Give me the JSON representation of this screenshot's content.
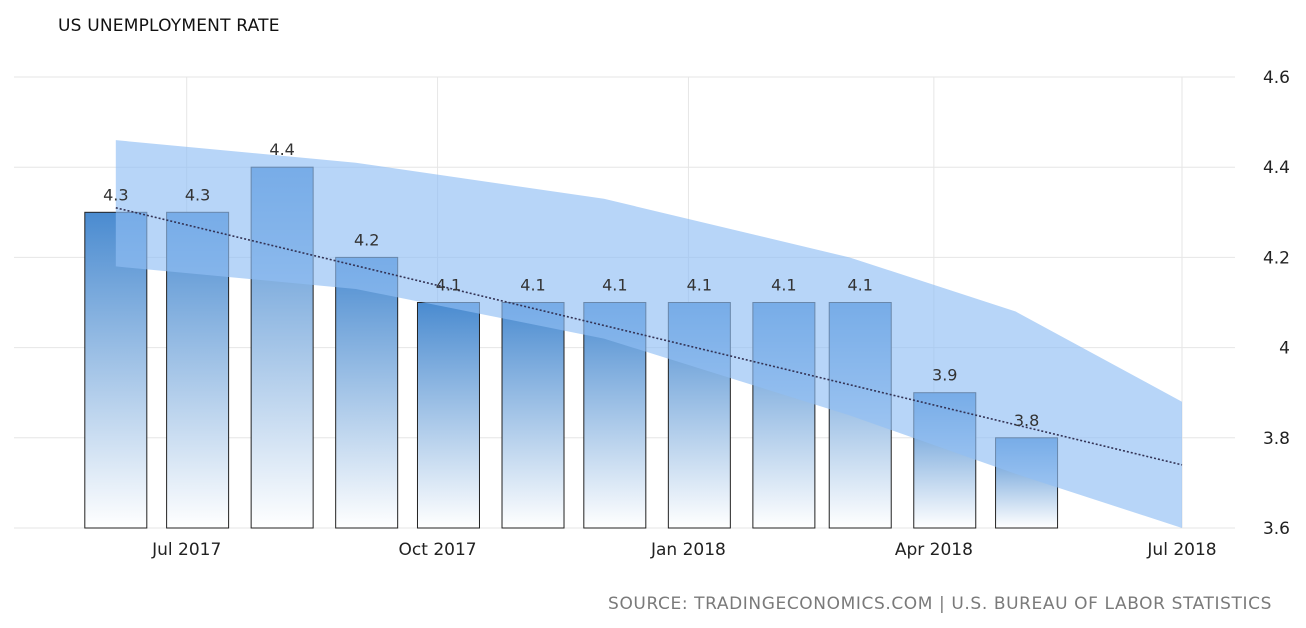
{
  "title": "US UNEMPLOYMENT RATE",
  "source": "SOURCE: TRADINGECONOMICS.COM | U.S. BUREAU OF LABOR STATISTICS",
  "colors": {
    "bar_top": "#4a8bd0",
    "bar_bottom": "#ffffff",
    "band": "#90bff5",
    "trend": "#333355",
    "grid": "#e6e6e6",
    "bar_stroke": "#222222"
  },
  "chart_data": {
    "type": "bar",
    "categories": [
      "2017-06",
      "2017-07",
      "2017-08",
      "2017-09",
      "2017-10",
      "2017-11",
      "2017-12",
      "2018-01",
      "2018-02",
      "2018-03",
      "2018-04",
      "2018-05"
    ],
    "values": [
      4.3,
      4.3,
      4.4,
      4.2,
      4.1,
      4.1,
      4.1,
      4.1,
      4.1,
      4.1,
      3.9,
      3.8
    ],
    "data_labels": [
      "4.3",
      "4.3",
      "4.4",
      "4.2",
      "4.1",
      "4.1",
      "4.1",
      "4.1",
      "4.1",
      "4.1",
      "3.9",
      "3.8"
    ],
    "title": "US UNEMPLOYMENT RATE",
    "xlabel": "",
    "ylabel": "",
    "ylim": [
      3.6,
      4.6
    ],
    "y_ticks": [
      3.6,
      3.8,
      4,
      4.2,
      4.4,
      4.6
    ],
    "y_tick_labels": [
      "3.6",
      "3.8",
      "4",
      "4.2",
      "4.4",
      "4.6"
    ],
    "y_axis_side": "right",
    "x_ticks": [
      "2017-07",
      "2017-10",
      "2018-01",
      "2018-04",
      "2018-07"
    ],
    "x_tick_labels": [
      "Jul 2017",
      "Oct 2017",
      "Jan 2018",
      "Apr 2018",
      "Jul 2018"
    ],
    "xlim": [
      "2017-06",
      "2018-07"
    ],
    "grid": true,
    "forecast_trend": {
      "type": "line",
      "style": "dotted",
      "x": [
        "2017-06",
        "2018-07"
      ],
      "values": [
        4.31,
        3.74
      ]
    },
    "forecast_band": {
      "type": "area",
      "x": [
        "2017-06",
        "2017-09",
        "2017-12",
        "2018-03",
        "2018-05",
        "2018-07"
      ],
      "upper": [
        4.46,
        4.41,
        4.33,
        4.2,
        4.08,
        3.88
      ],
      "lower": [
        4.18,
        4.13,
        4.02,
        3.85,
        3.72,
        3.6
      ]
    }
  }
}
